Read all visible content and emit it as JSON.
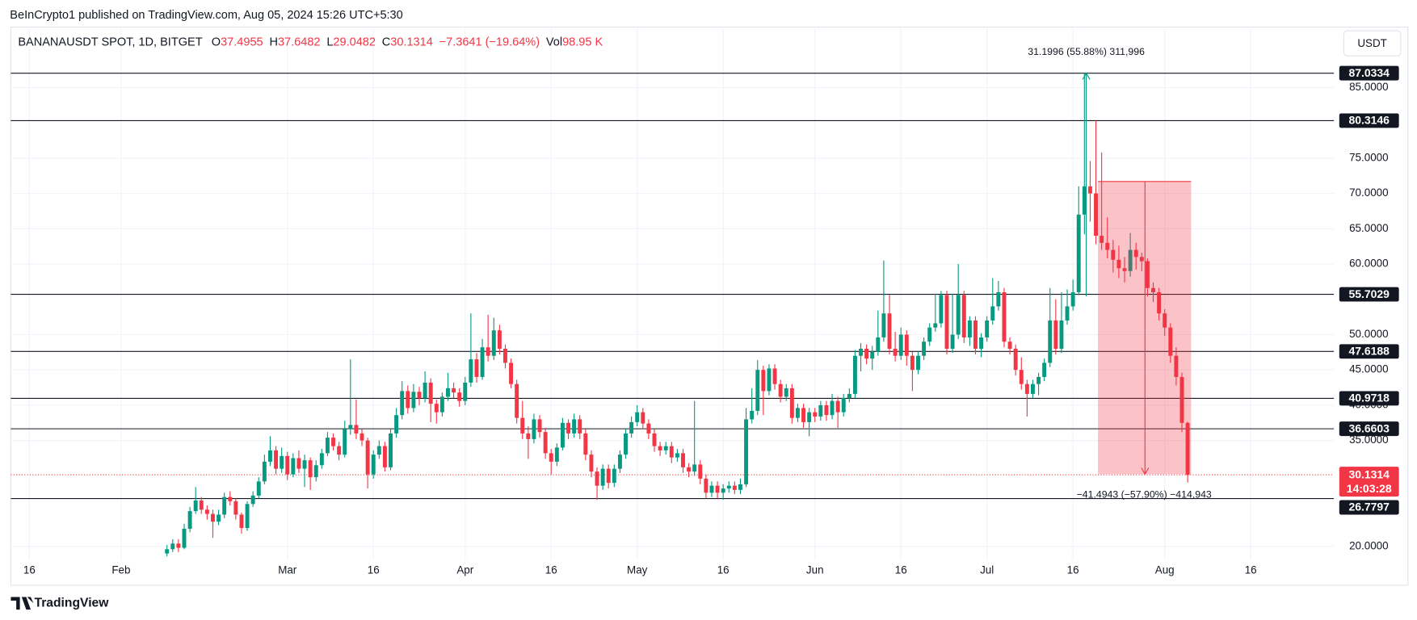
{
  "header": {
    "published": "BeInCrypto1 published on TradingView.com, Aug 05, 2024 15:26 UTC+5:30"
  },
  "brand": "TradingView",
  "currency": "USDT",
  "legend": {
    "symbol": "BANANAUSDT SPOT, 1D, BITGET",
    "items": [
      {
        "label": "O",
        "value": "37.4955"
      },
      {
        "label": "H",
        "value": "37.6482"
      },
      {
        "label": "L",
        "value": "29.0482"
      },
      {
        "label": "C",
        "value": "30.1314"
      }
    ],
    "change": "−7.3641 (−19.64%)",
    "vol_label": "Vol",
    "vol_value": "98.95 K"
  },
  "chart_data": {
    "type": "candlestick",
    "up_color": "#089981",
    "down_color": "#f23645",
    "grid": true,
    "xlim": [
      12.77,
      243.5
    ],
    "ylim": [
      18.08,
      93.56
    ],
    "xticks": [
      {
        "value": 16,
        "label": "16"
      },
      {
        "value": 32,
        "label": "Feb"
      },
      {
        "value": 61,
        "label": "Mar"
      },
      {
        "value": 76,
        "label": "16"
      },
      {
        "value": 92,
        "label": "Apr"
      },
      {
        "value": 107,
        "label": "16"
      },
      {
        "value": 122,
        "label": "May"
      },
      {
        "value": 137,
        "label": "16"
      },
      {
        "value": 153,
        "label": "Jun"
      },
      {
        "value": 168,
        "label": "16"
      },
      {
        "value": 183,
        "label": "Jul"
      },
      {
        "value": 198,
        "label": "16"
      },
      {
        "value": 214,
        "label": "Aug"
      },
      {
        "value": 229,
        "label": "16"
      }
    ],
    "yticks": [
      {
        "value": 20,
        "label": "20.0000"
      },
      {
        "value": 35,
        "label": "35.0000"
      },
      {
        "value": 40,
        "label": "40.0000"
      },
      {
        "value": 45,
        "label": "45.0000"
      },
      {
        "value": 50,
        "label": "50.0000"
      },
      {
        "value": 60,
        "label": "60.0000"
      },
      {
        "value": 65,
        "label": "65.0000"
      },
      {
        "value": 70,
        "label": "70.0000"
      },
      {
        "value": 75,
        "label": "75.0000"
      },
      {
        "value": 85,
        "label": "85.0000"
      }
    ],
    "levels": [
      87.0334,
      80.3146,
      55.7029,
      47.6188,
      40.9718,
      36.6603,
      26.7797
    ],
    "last_price": 30.1314,
    "countdown": "14:03:28",
    "measure_up": "31.1996 (55.88%) 311,996",
    "measure_down": "−41.4943 (−57.90%) −414,943",
    "x": [
      40,
      41,
      42,
      43,
      44,
      45,
      46,
      47,
      48,
      49,
      50,
      51,
      52,
      53,
      54,
      55,
      56,
      57,
      58,
      59,
      60,
      61,
      62,
      63,
      64,
      65,
      66,
      67,
      68,
      69,
      70,
      71,
      72,
      73,
      74,
      75,
      76,
      77,
      78,
      79,
      80,
      81,
      82,
      83,
      84,
      85,
      86,
      87,
      88,
      89,
      90,
      91,
      92,
      93,
      94,
      95,
      96,
      97,
      98,
      99,
      100,
      101,
      102,
      103,
      104,
      105,
      106,
      107,
      108,
      109,
      110,
      111,
      112,
      113,
      114,
      115,
      116,
      117,
      118,
      119,
      120,
      121,
      122,
      123,
      124,
      125,
      126,
      127,
      128,
      129,
      130,
      131,
      132,
      133,
      134,
      135,
      136,
      137,
      138,
      139,
      140,
      141,
      142,
      143,
      144,
      145,
      146,
      147,
      148,
      149,
      150,
      151,
      152,
      153,
      154,
      155,
      156,
      157,
      158,
      159,
      160,
      161,
      162,
      163,
      164,
      165,
      166,
      167,
      168,
      169,
      170,
      171,
      172,
      173,
      174,
      175,
      176,
      177,
      178,
      179,
      180,
      181,
      182,
      183,
      184,
      185,
      186,
      187,
      188,
      189,
      190,
      191,
      192,
      193,
      194,
      195,
      196,
      197,
      198,
      199,
      200,
      201,
      202,
      203,
      204,
      205,
      206,
      207,
      208,
      209,
      210,
      211,
      212,
      213,
      214,
      215,
      216,
      217,
      218
    ],
    "open": [
      19.0,
      19.6,
      20.4,
      19.8,
      22.5,
      25.0,
      26.5,
      25.2,
      24.6,
      23.5,
      24.5,
      27.0,
      26.4,
      24.5,
      22.6,
      26.0,
      27.2,
      29.2,
      32.0,
      33.6,
      31.0,
      32.8,
      30.2,
      32.5,
      31.0,
      32.2,
      29.8,
      31.5,
      33.2,
      35.4,
      34.2,
      33.0,
      36.6,
      37.2,
      36.0,
      35.0,
      30.2,
      33.0,
      34.2,
      31.2,
      36.0,
      38.6,
      42.0,
      39.6,
      41.9,
      41.0,
      43.2,
      40.2,
      39.0,
      41.2,
      42.4,
      41.8,
      40.6,
      43.2,
      46.5,
      44.0,
      48.2,
      47.0,
      50.6,
      48.0,
      46.0,
      43.0,
      38.2,
      36.0,
      35.2,
      38.0,
      36.2,
      33.2,
      32.0,
      34.0,
      37.5,
      36.0,
      38.0,
      36.0,
      33.0,
      30.6,
      28.6,
      31.0,
      29.0,
      31.0,
      33.0,
      36.0,
      37.6,
      39.0,
      37.4,
      36.0,
      34.2,
      33.6,
      34.2,
      32.6,
      33.2,
      31.2,
      30.6,
      31.6,
      29.6,
      27.6,
      28.6,
      27.6,
      28.2,
      28.6,
      28.0,
      28.8,
      38.0,
      39.2,
      45.0,
      42.0,
      45.2,
      43.0,
      41.2,
      42.4,
      38.2,
      39.6,
      37.6,
      39.0,
      38.4,
      40.0,
      38.6,
      40.6,
      39.0,
      41.0,
      41.6,
      47.0,
      48.0,
      46.6,
      47.6,
      49.6,
      53.0,
      48.0,
      47.0,
      50.0,
      47.0,
      45.0,
      47.0,
      49.0,
      51.0,
      51.6,
      55.6,
      48.0,
      50.0,
      55.6,
      49.6,
      52.0,
      48.0,
      49.6,
      52.0,
      54.0,
      56.0,
      49.0,
      48.0,
      45.0,
      43.0,
      41.6,
      43.0,
      44.0,
      46.0,
      52.0,
      48.0,
      52.0,
      54.0,
      56.0,
      67.0,
      71.0,
      70.0,
      64.0,
      63.0,
      62.0,
      60.6,
      59.4,
      59.0,
      62.0,
      61.0,
      60.4,
      56.6,
      56.0,
      53.0,
      51.0,
      47.0,
      44.0,
      37.4955
    ],
    "high": [
      20.2,
      21.0,
      21.0,
      23.2,
      25.6,
      28.4,
      27.0,
      25.8,
      25.2,
      25.2,
      27.6,
      27.8,
      26.8,
      24.8,
      26.4,
      27.8,
      29.8,
      33.0,
      35.6,
      34.2,
      34.0,
      33.4,
      33.2,
      33.6,
      33.0,
      32.6,
      32.2,
      33.8,
      36.2,
      36.0,
      34.8,
      37.8,
      46.5,
      40.8,
      36.6,
      35.4,
      33.6,
      35.0,
      34.8,
      36.6,
      39.6,
      43.4,
      42.8,
      43.0,
      42.6,
      44.8,
      43.8,
      40.8,
      41.8,
      44.6,
      43.2,
      42.4,
      44.0,
      53.0,
      47.4,
      49.4,
      52.8,
      52.4,
      51.4,
      48.6,
      46.6,
      43.6,
      40.6,
      37.0,
      38.8,
      38.6,
      36.8,
      33.8,
      34.6,
      38.2,
      38.0,
      38.8,
      38.6,
      36.6,
      33.6,
      31.2,
      31.6,
      31.6,
      31.6,
      33.6,
      36.6,
      38.4,
      40.0,
      39.6,
      38.0,
      36.6,
      34.8,
      34.8,
      34.8,
      33.8,
      33.8,
      31.8,
      40.6,
      32.2,
      30.2,
      29.2,
      29.2,
      28.8,
      29.2,
      29.2,
      29.6,
      39.6,
      42.4,
      46.4,
      45.6,
      45.8,
      45.8,
      43.6,
      43.0,
      43.0,
      40.2,
      40.2,
      39.6,
      39.6,
      40.6,
      40.6,
      41.6,
      41.2,
      41.6,
      42.4,
      47.8,
      48.8,
      48.6,
      48.4,
      53.4,
      60.5,
      55.6,
      50.4,
      51.0,
      50.6,
      47.6,
      47.6,
      49.6,
      51.6,
      55.8,
      56.2,
      56.2,
      55.8,
      60.0,
      56.2,
      52.6,
      52.6,
      50.2,
      52.6,
      58.0,
      57.6,
      56.6,
      49.6,
      48.6,
      46.8,
      43.6,
      43.6,
      44.6,
      46.6,
      56.6,
      55.0,
      56.0,
      56.4,
      57.8,
      71.0,
      87.0334,
      74.6,
      80.3146,
      75.8,
      66.6,
      63.4,
      62.6,
      61.0,
      64.4,
      63.0,
      61.6,
      60.8,
      57.4,
      56.6,
      53.6,
      51.6,
      48.2,
      44.6,
      37.6482
    ],
    "low": [
      18.6,
      19.2,
      19.2,
      19.6,
      22.0,
      24.6,
      24.6,
      23.8,
      21.2,
      23.0,
      24.0,
      25.8,
      23.8,
      21.8,
      22.2,
      25.6,
      26.8,
      28.8,
      31.4,
      30.2,
      30.4,
      29.4,
      29.8,
      30.4,
      28.4,
      28.0,
      29.2,
      31.0,
      32.8,
      33.6,
      32.2,
      32.6,
      35.8,
      35.2,
      34.2,
      28.2,
      29.6,
      32.4,
      30.6,
      30.8,
      35.4,
      38.0,
      38.8,
      39.0,
      40.0,
      40.4,
      37.6,
      37.4,
      38.4,
      40.6,
      41.0,
      39.8,
      40.0,
      42.6,
      43.2,
      43.6,
      46.2,
      46.4,
      47.2,
      45.2,
      42.4,
      37.4,
      35.2,
      32.4,
      34.6,
      35.4,
      32.4,
      30.2,
      31.4,
      33.6,
      35.2,
      35.4,
      35.2,
      32.2,
      29.8,
      26.6,
      28.0,
      28.2,
      28.4,
      30.4,
      32.4,
      35.4,
      37.0,
      36.6,
      35.2,
      33.4,
      32.8,
      33.0,
      31.8,
      32.0,
      30.4,
      29.8,
      30.0,
      28.8,
      26.8,
      27.0,
      26.8,
      26.6,
      27.6,
      27.4,
      27.4,
      28.4,
      37.4,
      38.6,
      38.6,
      41.4,
      42.2,
      40.4,
      40.6,
      37.4,
      37.6,
      36.8,
      35.6,
      37.6,
      37.8,
      37.8,
      38.0,
      36.8,
      38.4,
      40.4,
      41.0,
      44.8,
      45.8,
      45.0,
      47.0,
      49.0,
      47.2,
      46.2,
      46.4,
      45.6,
      42.0,
      44.4,
      46.4,
      48.4,
      50.4,
      51.0,
      47.2,
      47.4,
      49.4,
      48.8,
      48.4,
      47.2,
      46.8,
      49.0,
      51.4,
      53.4,
      48.2,
      47.2,
      44.2,
      42.2,
      38.4,
      41.0,
      41.4,
      43.4,
      45.4,
      47.2,
      47.4,
      51.4,
      53.4,
      55.6,
      64.2,
      66.0,
      62.8,
      62.0,
      60.8,
      58.8,
      58.0,
      57.4,
      58.2,
      59.2,
      59.0,
      55.4,
      54.6,
      52.0,
      49.8,
      46.0,
      42.8,
      36.2,
      29.0482
    ],
    "close": [
      19.6,
      20.4,
      19.8,
      22.5,
      25.0,
      26.5,
      25.2,
      24.6,
      23.5,
      24.5,
      27.0,
      26.4,
      24.5,
      22.6,
      26.0,
      27.2,
      29.2,
      32.0,
      33.6,
      31.0,
      32.8,
      30.2,
      32.5,
      31.0,
      32.2,
      29.8,
      31.5,
      33.2,
      35.4,
      34.2,
      33.0,
      36.6,
      37.2,
      36.0,
      35.0,
      30.2,
      33.0,
      34.2,
      31.2,
      36.0,
      38.6,
      42.0,
      39.6,
      41.9,
      41.0,
      43.2,
      40.2,
      39.0,
      41.2,
      42.4,
      41.8,
      40.6,
      43.2,
      46.5,
      44.0,
      48.2,
      47.0,
      50.6,
      48.0,
      46.0,
      43.0,
      38.2,
      36.0,
      35.2,
      38.0,
      36.2,
      33.2,
      32.0,
      34.0,
      37.5,
      36.0,
      38.0,
      36.0,
      33.0,
      30.6,
      28.6,
      31.0,
      29.0,
      31.0,
      33.0,
      36.0,
      37.6,
      39.0,
      37.4,
      36.0,
      34.2,
      33.6,
      34.2,
      32.6,
      33.2,
      31.2,
      30.6,
      31.6,
      29.6,
      27.6,
      28.6,
      27.6,
      28.2,
      28.6,
      28.0,
      28.8,
      38.0,
      39.2,
      45.0,
      42.0,
      45.2,
      43.0,
      41.2,
      42.4,
      38.2,
      39.6,
      37.6,
      39.0,
      38.4,
      40.0,
      38.6,
      40.6,
      39.0,
      41.0,
      41.6,
      47.0,
      48.0,
      46.6,
      47.6,
      49.6,
      53.0,
      48.0,
      47.0,
      50.0,
      47.0,
      45.0,
      47.0,
      49.0,
      51.0,
      51.6,
      55.6,
      48.0,
      50.0,
      55.6,
      49.6,
      52.0,
      48.0,
      49.6,
      52.0,
      54.0,
      56.0,
      49.0,
      48.0,
      45.0,
      43.0,
      41.6,
      43.0,
      44.0,
      46.0,
      52.0,
      48.0,
      52.0,
      54.0,
      56.0,
      67.0,
      71.0,
      70.0,
      64.0,
      63.0,
      62.0,
      60.6,
      59.4,
      59.0,
      62.0,
      61.0,
      60.4,
      56.6,
      56.0,
      53.0,
      51.0,
      47.0,
      44.0,
      37.4955,
      30.1314
    ]
  }
}
